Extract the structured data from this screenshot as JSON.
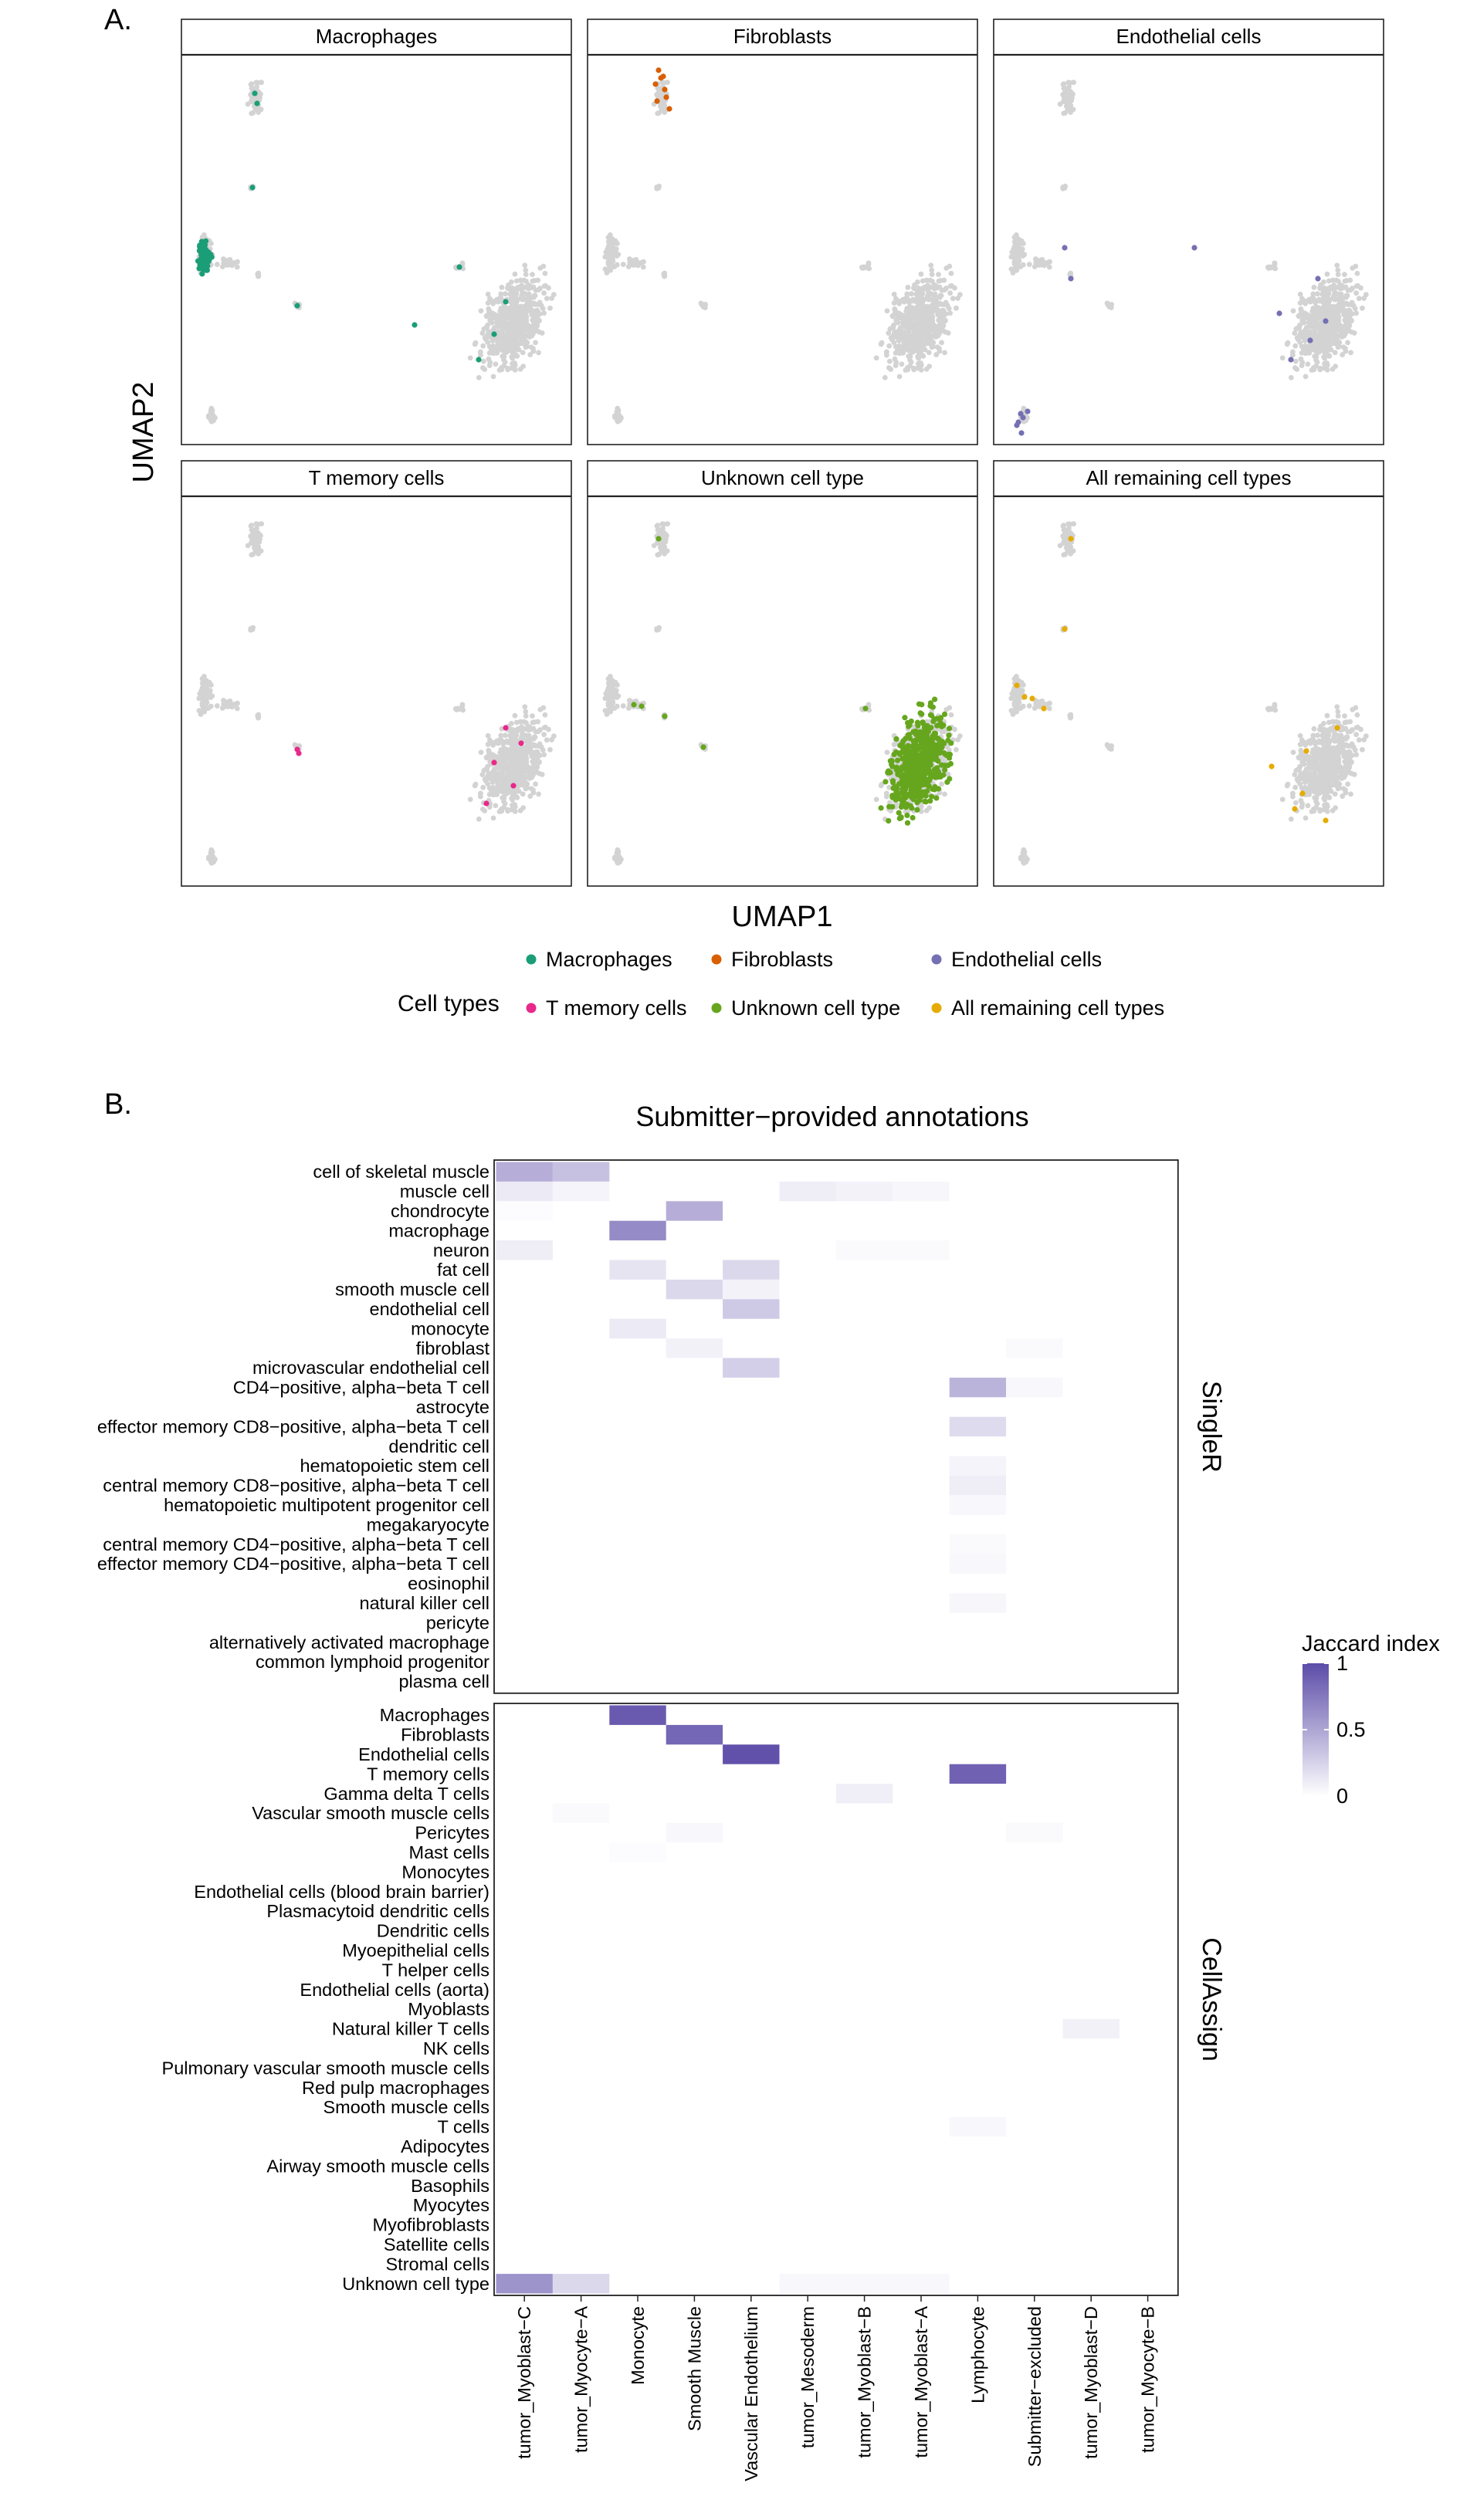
{
  "panel_labels": {
    "a": "A.",
    "b": "B."
  },
  "umap": {
    "xlabel": "UMAP1",
    "ylabel": "UMAP2",
    "facets": [
      "Macrophages",
      "Fibroblasts",
      "Endothelial cells",
      "T memory cells",
      "Unknown cell type",
      "All remaining cell types"
    ],
    "legend_title": "Cell types",
    "legend": [
      {
        "name": "Macrophages",
        "color": "#1b9e77"
      },
      {
        "name": "Fibroblasts",
        "color": "#d95f02"
      },
      {
        "name": "Endothelial cells",
        "color": "#7570b3"
      },
      {
        "name": "T memory cells",
        "color": "#e7298a"
      },
      {
        "name": "Unknown cell type",
        "color": "#66a61e"
      },
      {
        "name": "All remaining cell types",
        "color": "#e6ab02"
      }
    ],
    "background_color": "#d3d3d3"
  },
  "chart_data": {
    "type": "heatmap",
    "title": "Submitter−provided annotations",
    "value_label": "Jaccard index",
    "scale": {
      "min": 0,
      "max": 1,
      "ticks": [
        "0",
        "0.5",
        "1"
      ],
      "low_color": "#ffffff",
      "high_color": "#5c4ca8"
    },
    "columns": [
      "tumor_Myoblast−C",
      "tumor_Myocyte−A",
      "Monocyte",
      "Smooth Muscle",
      "Vascular Endothelium",
      "tumor_Mesoderm",
      "tumor_Myoblast−B",
      "tumor_Myoblast−A",
      "Lymphocyte",
      "Submitter−excluded",
      "tumor_Myoblast−D",
      "tumor_Myocyte−B"
    ],
    "facets": [
      {
        "name": "SingleR",
        "rows": [
          "cell of skeletal muscle",
          "muscle cell",
          "chondrocyte",
          "macrophage",
          "neuron",
          "fat cell",
          "smooth muscle cell",
          "endothelial cell",
          "monocyte",
          "fibroblast",
          "microvascular endothelial cell",
          "CD4−positive, alpha−beta T cell",
          "astrocyte",
          "effector memory CD8−positive, alpha−beta T cell",
          "dendritic cell",
          "hematopoietic stem cell",
          "central memory CD8−positive, alpha−beta T cell",
          "hematopoietic multipotent progenitor cell",
          "megakaryocyte",
          "central memory CD4−positive, alpha−beta T cell",
          "effector memory CD4−positive, alpha−beta T cell",
          "eosinophil",
          "natural killer cell",
          "pericyte",
          "alternatively activated macrophage",
          "common lymphoid progenitor",
          "plasma cell"
        ],
        "cells": [
          {
            "r": 0,
            "c": 0,
            "v": 0.45
          },
          {
            "r": 0,
            "c": 1,
            "v": 0.35
          },
          {
            "r": 1,
            "c": 0,
            "v": 0.12
          },
          {
            "r": 1,
            "c": 1,
            "v": 0.06
          },
          {
            "r": 1,
            "c": 5,
            "v": 0.1
          },
          {
            "r": 1,
            "c": 6,
            "v": 0.07
          },
          {
            "r": 1,
            "c": 7,
            "v": 0.05
          },
          {
            "r": 2,
            "c": 3,
            "v": 0.45
          },
          {
            "r": 2,
            "c": 0,
            "v": 0.02
          },
          {
            "r": 3,
            "c": 2,
            "v": 0.65
          },
          {
            "r": 4,
            "c": 0,
            "v": 0.1
          },
          {
            "r": 4,
            "c": 6,
            "v": 0.03
          },
          {
            "r": 4,
            "c": 7,
            "v": 0.03
          },
          {
            "r": 5,
            "c": 2,
            "v": 0.15
          },
          {
            "r": 5,
            "c": 4,
            "v": 0.22
          },
          {
            "r": 6,
            "c": 3,
            "v": 0.22
          },
          {
            "r": 6,
            "c": 4,
            "v": 0.07
          },
          {
            "r": 7,
            "c": 4,
            "v": 0.3
          },
          {
            "r": 8,
            "c": 2,
            "v": 0.12
          },
          {
            "r": 9,
            "c": 3,
            "v": 0.08
          },
          {
            "r": 9,
            "c": 9,
            "v": 0.03
          },
          {
            "r": 10,
            "c": 4,
            "v": 0.27
          },
          {
            "r": 11,
            "c": 8,
            "v": 0.42
          },
          {
            "r": 11,
            "c": 9,
            "v": 0.04
          },
          {
            "r": 13,
            "c": 8,
            "v": 0.2
          },
          {
            "r": 15,
            "c": 8,
            "v": 0.06
          },
          {
            "r": 16,
            "c": 8,
            "v": 0.1
          },
          {
            "r": 17,
            "c": 8,
            "v": 0.04
          },
          {
            "r": 19,
            "c": 8,
            "v": 0.03
          },
          {
            "r": 20,
            "c": 8,
            "v": 0.04
          },
          {
            "r": 22,
            "c": 8,
            "v": 0.05
          }
        ]
      },
      {
        "name": "CellAssign",
        "rows": [
          "Macrophages",
          "Fibroblasts",
          "Endothelial cells",
          "T memory cells",
          "Gamma delta T cells",
          "Vascular smooth muscle cells",
          "Pericytes",
          "Mast cells",
          "Monocytes",
          "Endothelial cells (blood brain barrier)",
          "Plasmacytoid dendritic cells",
          "Dendritic cells",
          "Myoepithelial cells",
          "T helper cells",
          "Endothelial cells (aorta)",
          "Myoblasts",
          "Natural killer T cells",
          "NK cells",
          "Pulmonary vascular smooth muscle cells",
          "Red pulp macrophages",
          "Smooth muscle cells",
          "T cells",
          "Adipocytes",
          "Airway smooth muscle cells",
          "Basophils",
          "Myocytes",
          "Myofibroblasts",
          "Satellite cells",
          "Stromal cells",
          "Unknown cell type"
        ],
        "cells": [
          {
            "r": 0,
            "c": 2,
            "v": 0.92
          },
          {
            "r": 1,
            "c": 3,
            "v": 0.85
          },
          {
            "r": 2,
            "c": 4,
            "v": 0.97
          },
          {
            "r": 3,
            "c": 8,
            "v": 0.88
          },
          {
            "r": 4,
            "c": 6,
            "v": 0.09
          },
          {
            "r": 5,
            "c": 1,
            "v": 0.03
          },
          {
            "r": 6,
            "c": 3,
            "v": 0.04
          },
          {
            "r": 6,
            "c": 9,
            "v": 0.03
          },
          {
            "r": 7,
            "c": 2,
            "v": 0.02
          },
          {
            "r": 16,
            "c": 10,
            "v": 0.08
          },
          {
            "r": 21,
            "c": 8,
            "v": 0.04
          },
          {
            "r": 29,
            "c": 0,
            "v": 0.6
          },
          {
            "r": 29,
            "c": 1,
            "v": 0.22
          },
          {
            "r": 29,
            "c": 5,
            "v": 0.04
          },
          {
            "r": 29,
            "c": 6,
            "v": 0.04
          },
          {
            "r": 29,
            "c": 7,
            "v": 0.04
          }
        ]
      }
    ]
  }
}
